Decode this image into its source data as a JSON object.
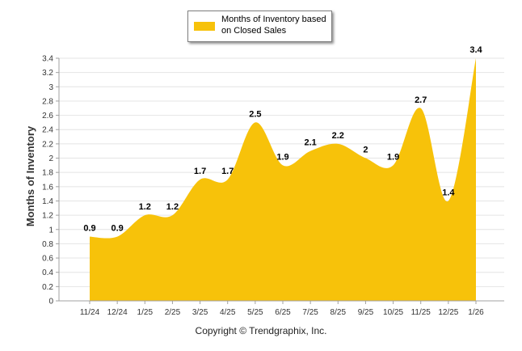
{
  "chart_data": {
    "type": "area",
    "categories": [
      "11/24",
      "12/24",
      "1/25",
      "2/25",
      "3/25",
      "4/25",
      "5/25",
      "6/25",
      "7/25",
      "8/25",
      "9/25",
      "10/25",
      "11/25",
      "12/25",
      "1/26"
    ],
    "series": [
      {
        "name": "Months of Inventory based on Closed Sales",
        "values": [
          0.9,
          0.9,
          1.2,
          1.2,
          1.7,
          1.7,
          2.5,
          1.9,
          2.1,
          2.2,
          2.0,
          1.9,
          2.7,
          1.4,
          3.4
        ],
        "labels": [
          "0.9",
          "0.9",
          "1.2",
          "1.2",
          "1.7",
          "1.7",
          "2.5",
          "1.9",
          "2.1",
          "2.2",
          "2",
          "1.9",
          "2.7",
          "1.4",
          "3.4"
        ],
        "color": "#f7c20a"
      }
    ],
    "ylabel": "Months of Inventory",
    "ylim": [
      0,
      3.4
    ],
    "yticks": [
      0,
      0.2,
      0.4,
      0.6,
      0.8,
      1,
      1.2,
      1.4,
      1.6,
      1.8,
      2,
      2.2,
      2.4,
      2.6,
      2.8,
      3,
      3.2,
      3.4
    ],
    "yticklabels": [
      "0",
      "0.2",
      "0.4",
      "0.6",
      "0.8",
      "1",
      "1.2",
      "1.4",
      "1.6",
      "1.8",
      "2",
      "2.2",
      "2.4",
      "2.6",
      "2.8",
      "3",
      "3.2",
      "3.4"
    ],
    "grid": true,
    "legend": "top-center"
  },
  "legend": {
    "label": "Months of Inventory based on Closed Sales"
  },
  "footer": {
    "copyright": "Copyright © Trendgraphix, Inc."
  },
  "colors": {
    "series": "#f7c20a",
    "grid": "#e4e4e4",
    "axis": "#a0a0a0"
  }
}
